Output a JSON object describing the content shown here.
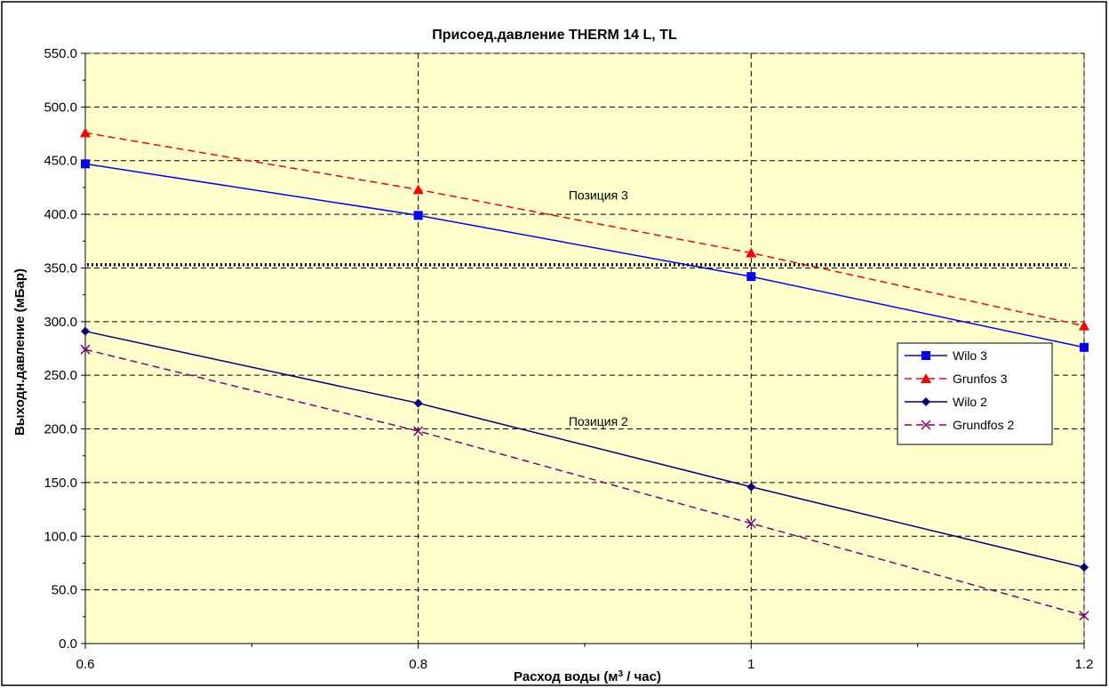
{
  "chart_data": {
    "type": "line",
    "title": "Присоед.давление THERM 14 L, TL",
    "xlabel_main": "Расход воды (м",
    "xlabel_sup": "3",
    "xlabel_tail": " / час)",
    "ylabel": "Выходн.давление (мБар)",
    "x": [
      0.6,
      0.8,
      1,
      1.2
    ],
    "x_tick_labels": [
      "0.6",
      "0.8",
      "1",
      "1.2"
    ],
    "xlim": [
      0.6,
      1.2
    ],
    "ylim": [
      0,
      550
    ],
    "y_ticks": [
      0,
      50,
      100,
      150,
      200,
      250,
      300,
      350,
      400,
      450,
      500,
      550
    ],
    "y_tick_labels": [
      "0.0",
      "50.0",
      "100.0",
      "150.0",
      "200.0",
      "250.0",
      "300.0",
      "350.0",
      "400.0",
      "450.0",
      "500.0",
      "550.0"
    ],
    "grid": true,
    "legend_position": "right",
    "plot_background": "#ffffcc",
    "series": [
      {
        "name": "Wilo 3",
        "values": [
          447,
          399,
          342,
          276
        ],
        "color": "#0000ff",
        "dash": "solid",
        "marker": "square"
      },
      {
        "name": "Grunfos 3",
        "values": [
          476,
          423,
          364,
          296
        ],
        "color": "#ff0000",
        "dash": "dashed",
        "marker": "triangle"
      },
      {
        "name": "Wilo 2",
        "values": [
          291,
          224,
          146,
          71
        ],
        "color": "#000080",
        "dash": "solid",
        "marker": "diamond"
      },
      {
        "name": "Grundfos 2",
        "values": [
          274,
          198,
          112,
          26
        ],
        "color": "#800080",
        "dash": "dashed",
        "marker": "x"
      }
    ],
    "reference_line": {
      "y": 353,
      "style": "dotted",
      "color": "#000000"
    },
    "annotations": [
      {
        "text": "Позиция 3",
        "x": 1.0,
        "y": 418
      },
      {
        "text": "Позиция 2",
        "x": 1.0,
        "y": 207
      }
    ]
  }
}
